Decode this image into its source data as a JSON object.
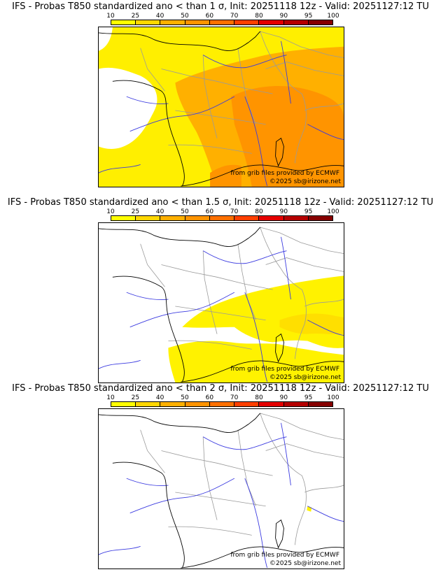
{
  "panels": [
    {
      "title": "IFS - Probas T850  standardized ano < than 1 σ, Init: 20251118 12z - Valid: 20251127:12 TU",
      "source_credit": "from grib files provided by ECMWF",
      "copyright": "©2025 sb@irizone.net",
      "coverage": "yellow over most of the map, orange (40-60%) over central/eastern France, the Alps and the Mediterranean; Brittany/Atlantic northwest largely white"
    },
    {
      "title": "IFS - Probas T850  standardized ano < than 1.5 σ, Init: 20251118 12z - Valid: 20251127:12 TU",
      "source_credit": "from grib files provided by ECMWF",
      "copyright": "©2025 sb@irizone.net",
      "coverage": "yellow (10-25%) band from the southwest through the Massif Central to the Alps and Mediterranean; north and west white"
    },
    {
      "title": "IFS - Probas T850  standardized ano < than 2 σ, Init: 20251118 12z - Valid: 20251127:12 TU",
      "source_credit": "from grib files provided by ECMWF",
      "copyright": "©2025 sb@irizone.net",
      "coverage": "almost entirely white; tiny yellow patch near Corsica/Italy coast"
    }
  ],
  "legend": {
    "ticks": [
      "10",
      "25",
      "40",
      "50",
      "60",
      "70",
      "80",
      "90",
      "95",
      "100"
    ],
    "colors": [
      "#ffff00",
      "#ffd700",
      "#ffb000",
      "#ff9400",
      "#ff7000",
      "#ff4000",
      "#e50000",
      "#b50000",
      "#860000"
    ]
  },
  "map_colors": {
    "yellow": "#ffef00",
    "yellow_light": "#fff200",
    "orange_light": "#ffb000",
    "orange": "#ff9400",
    "coast": "#000000",
    "river": "#3a3ae0",
    "border": "#9a9a9a"
  }
}
